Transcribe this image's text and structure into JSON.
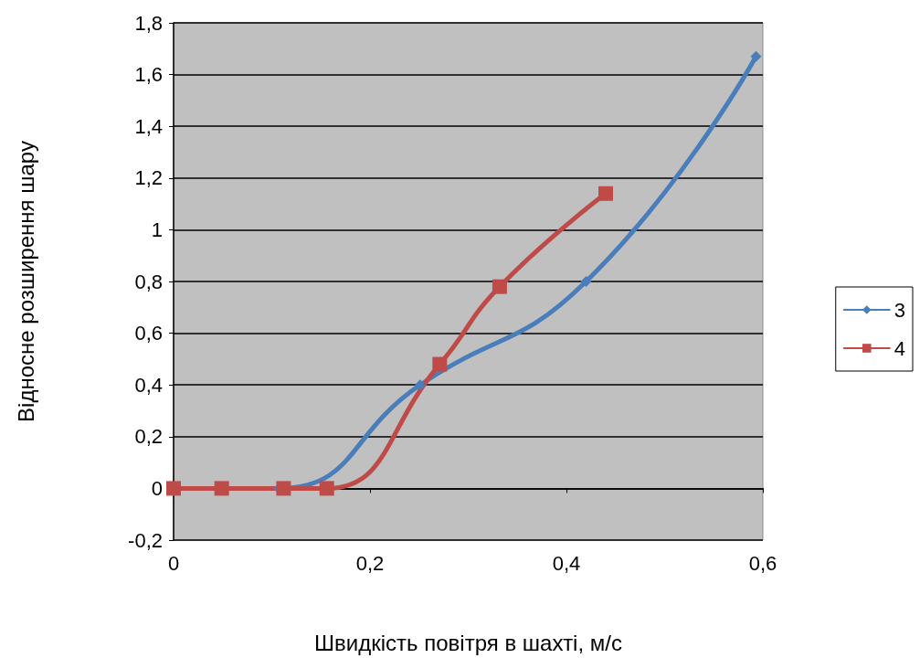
{
  "chart_data": {
    "type": "line",
    "xlabel": "Швидкість повітря в шахті, м/с",
    "ylabel": "Відносне розширення шару",
    "xlim": [
      0,
      0.6
    ],
    "xticks": [
      0,
      {
        "value": 0.2,
        "label": "0,2"
      },
      {
        "value": 0.4,
        "label": "0,4"
      },
      {
        "value": 0.6,
        "label": "0,6"
      }
    ],
    "ylim": [
      -0.2,
      1.8
    ],
    "yticks": [
      {
        "value": -0.2,
        "label": "-0,2"
      },
      0,
      {
        "value": 0.2,
        "label": "0,2"
      },
      {
        "value": 0.4,
        "label": "0,4"
      },
      {
        "value": 0.6,
        "label": "0,6"
      },
      {
        "value": 0.8,
        "label": "0,8"
      },
      1,
      {
        "value": 1.2,
        "label": "1,2"
      },
      {
        "value": 1.4,
        "label": "1,4"
      },
      {
        "value": 1.6,
        "label": "1,6"
      },
      {
        "value": 1.8,
        "label": "1,8"
      }
    ],
    "grid": "y",
    "legend": "right",
    "line_style": "solid",
    "series": [
      {
        "name": "3",
        "color": "#4a7ebb",
        "marker": "diamond",
        "x": [
          0,
          0.107,
          0.251,
          0.42,
          0.593
        ],
        "values": [
          0,
          0,
          0.4,
          0.8,
          1.67
        ]
      },
      {
        "name": "4",
        "color": "#be4b48",
        "marker": "square",
        "x": [
          0,
          0.049,
          0.112,
          0.156,
          0.271,
          0.332,
          0.44
        ],
        "values": [
          0,
          0,
          0,
          0,
          0.48,
          0.78,
          1.14
        ]
      }
    ]
  }
}
